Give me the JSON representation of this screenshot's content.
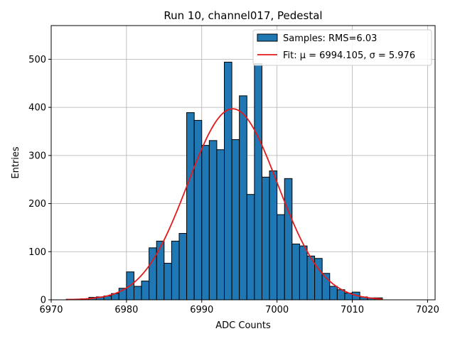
{
  "chart_data": {
    "type": "bar",
    "title": "Run 10, channel017, Pedestal",
    "xlabel": "ADC Counts",
    "ylabel": "Entries",
    "xlim": [
      6970,
      7021
    ],
    "ylim": [
      0,
      570
    ],
    "xticks": [
      6970,
      6980,
      6990,
      7000,
      7010,
      7020
    ],
    "yticks": [
      0,
      100,
      200,
      300,
      400,
      500
    ],
    "grid": true,
    "legend_placement": "top-right",
    "bin_width": 1,
    "bins": {
      "left_edges": [
        6972,
        6973,
        6974,
        6975,
        6976,
        6977,
        6978,
        6979,
        6980,
        6981,
        6982,
        6983,
        6984,
        6985,
        6986,
        6987,
        6988,
        6989,
        6990,
        6991,
        6992,
        6993,
        6994,
        6995,
        6996,
        6997,
        6998,
        6999,
        7000,
        7001,
        7002,
        7003,
        7004,
        7005,
        7006,
        7007,
        7008,
        7009,
        7010,
        7011,
        7012,
        7013
      ],
      "counts": [
        1,
        1,
        2,
        5,
        6,
        8,
        13,
        24,
        58,
        28,
        39,
        108,
        122,
        76,
        122,
        138,
        389,
        373,
        321,
        331,
        312,
        494,
        333,
        424,
        219,
        491,
        255,
        268,
        177,
        252,
        116,
        112,
        91,
        86,
        55,
        28,
        21,
        14,
        16,
        6,
        4,
        4
      ]
    },
    "series": [
      {
        "name": "Samples: RMS=6.03",
        "kind": "histogram",
        "color": "#1f77b4",
        "edgecolor": "#000000"
      },
      {
        "name": "Fit: μ = 6994.105, σ = 5.976",
        "kind": "gaussian-fit",
        "color": "#e41a1c",
        "mu": 6994.105,
        "sigma": 5.976,
        "peak": 397,
        "x_range": [
          6972,
          7014
        ]
      }
    ]
  }
}
